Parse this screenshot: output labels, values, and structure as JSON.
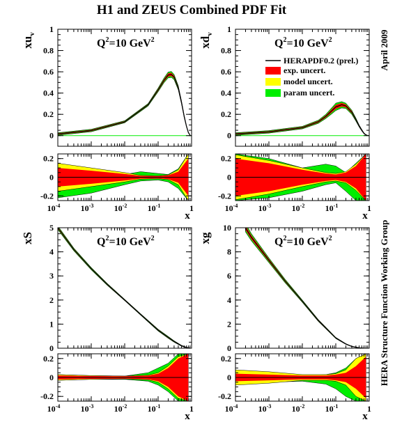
{
  "figure": {
    "title": "H1 and ZEUS Combined PDF Fit",
    "side_top": "April 2009",
    "side_bottom": "HERA Structure Function Working Group",
    "q2_label": "Q",
    "q2_value": "=10 GeV",
    "x_axis_label": "x"
  },
  "colors": {
    "central": "#000000",
    "exp": "#ff0000",
    "model": "#ffff00",
    "param": "#00ee00",
    "axis": "#000000"
  },
  "chart_data": [
    {
      "type": "line",
      "id": "xuv",
      "ylabel": "xu",
      "ylabel_sub": "v",
      "xscale": "log",
      "xlim": [
        0.0001,
        1
      ],
      "ylim": [
        -0.1,
        1
      ],
      "yticks": [
        0,
        0.2,
        0.4,
        0.6,
        0.8,
        1
      ],
      "legend": null,
      "x": [
        0.0001,
        0.001,
        0.01,
        0.05,
        0.1,
        0.15,
        0.2,
        0.25,
        0.3,
        0.4,
        0.5,
        0.6,
        0.7,
        0.8,
        0.9
      ],
      "series": [
        {
          "name": "HERAPDF0.2 (prel.)",
          "values": [
            0.015,
            0.048,
            0.13,
            0.29,
            0.43,
            0.52,
            0.57,
            0.575,
            0.55,
            0.45,
            0.31,
            0.18,
            0.09,
            0.03,
            0.004
          ]
        }
      ],
      "band_param": [
        0.012,
        0.012,
        0.01,
        0.012,
        0.018,
        0.022,
        0.028,
        0.028,
        0.025,
        0.02,
        0.015,
        0.012,
        0.008,
        0.005,
        0.002
      ],
      "ratio": {
        "ylim": [
          -0.25,
          0.25
        ],
        "yticks": [
          -0.2,
          0,
          0.2
        ],
        "x": [
          0.0001,
          0.001,
          0.01,
          0.03,
          0.1,
          0.2,
          0.4,
          0.8
        ],
        "exp": [
          0.1,
          0.07,
          0.035,
          0.015,
          0.012,
          0.02,
          0.06,
          0.2
        ],
        "model": [
          0.15,
          0.1,
          0.05,
          0.02,
          0.015,
          0.025,
          0.08,
          0.25
        ],
        "param_up": [
          0.08,
          0.06,
          0.03,
          0.06,
          0.04,
          0.03,
          0.09,
          0.25
        ],
        "param_dn": [
          0.22,
          0.17,
          0.08,
          0.04,
          0.03,
          0.05,
          0.12,
          0.25
        ]
      }
    },
    {
      "type": "line",
      "id": "xdv",
      "ylabel": "xd",
      "ylabel_sub": "v",
      "xscale": "log",
      "xlim": [
        0.0001,
        1
      ],
      "ylim": [
        -0.1,
        1
      ],
      "yticks": [
        0,
        0.2,
        0.4,
        0.6,
        0.8,
        1
      ],
      "legend": {
        "central": "HERAPDF0.2 (prel.)",
        "exp": "exp. uncert.",
        "model": "model uncert.",
        "param": "param uncert."
      },
      "x": [
        0.0001,
        0.001,
        0.01,
        0.03,
        0.05,
        0.08,
        0.1,
        0.15,
        0.2,
        0.3,
        0.4,
        0.5,
        0.6,
        0.7,
        0.8,
        0.9
      ],
      "series": [
        {
          "name": "HERAPDF0.2 (prel.)",
          "values": [
            0.015,
            0.035,
            0.075,
            0.13,
            0.18,
            0.24,
            0.27,
            0.29,
            0.28,
            0.22,
            0.15,
            0.09,
            0.05,
            0.02,
            0.007,
            0.001
          ]
        }
      ],
      "band_param": [
        0.012,
        0.012,
        0.012,
        0.015,
        0.02,
        0.03,
        0.035,
        0.03,
        0.025,
        0.02,
        0.015,
        0.01,
        0.008,
        0.005,
        0.003,
        0.001
      ],
      "ratio": {
        "ylim": [
          -0.25,
          0.25
        ],
        "yticks": [
          -0.2,
          0,
          0.2
        ],
        "x": [
          0.0001,
          0.001,
          0.01,
          0.05,
          0.1,
          0.2,
          0.4,
          0.8
        ],
        "exp": [
          0.2,
          0.15,
          0.08,
          0.04,
          0.03,
          0.05,
          0.12,
          0.25
        ],
        "model": [
          0.24,
          0.18,
          0.1,
          0.05,
          0.04,
          0.06,
          0.14,
          0.25
        ],
        "param_up": [
          0.25,
          0.2,
          0.1,
          0.14,
          0.12,
          0.05,
          0.15,
          0.25
        ],
        "param_dn": [
          0.25,
          0.22,
          0.15,
          0.08,
          0.06,
          0.15,
          0.25,
          0.25
        ]
      }
    },
    {
      "type": "line",
      "id": "xs",
      "ylabel": "xS",
      "ylabel_sub": "",
      "xscale": "log",
      "xlim": [
        0.0001,
        1
      ],
      "ylim": [
        0,
        5
      ],
      "yticks": [
        0,
        1,
        2,
        3,
        4,
        5
      ],
      "legend": null,
      "x": [
        0.0001,
        0.0003,
        0.001,
        0.003,
        0.01,
        0.03,
        0.1,
        0.2,
        0.3,
        0.5,
        0.7,
        0.9
      ],
      "series": [
        {
          "name": "HERAPDF0.2 (prel.)",
          "values": [
            5.0,
            4.1,
            3.3,
            2.65,
            2.0,
            1.4,
            0.75,
            0.45,
            0.28,
            0.1,
            0.03,
            0.005
          ]
        }
      ],
      "band_param": [
        0.08,
        0.06,
        0.05,
        0.04,
        0.03,
        0.03,
        0.04,
        0.04,
        0.03,
        0.02,
        0.01,
        0.005
      ],
      "ratio": {
        "ylim": [
          -0.25,
          0.25
        ],
        "yticks": [
          -0.2,
          0,
          0.2
        ],
        "x": [
          0.0001,
          0.001,
          0.01,
          0.05,
          0.1,
          0.2,
          0.4,
          0.8
        ],
        "exp": [
          0.02,
          0.015,
          0.012,
          0.02,
          0.04,
          0.1,
          0.2,
          0.25
        ],
        "model": [
          0.03,
          0.02,
          0.015,
          0.025,
          0.05,
          0.12,
          0.22,
          0.25
        ],
        "param_up": [
          0.03,
          0.02,
          0.015,
          0.05,
          0.1,
          0.15,
          0.25,
          0.25
        ],
        "param_dn": [
          0.03,
          0.02,
          0.02,
          0.04,
          0.08,
          0.15,
          0.25,
          0.25
        ]
      }
    },
    {
      "type": "line",
      "id": "xg",
      "ylabel": "xg",
      "ylabel_sub": "",
      "xscale": "log",
      "xlim": [
        0.0001,
        1
      ],
      "ylim": [
        0,
        10
      ],
      "yticks": [
        0,
        2,
        4,
        6,
        8,
        10
      ],
      "legend": null,
      "x": [
        0.0002,
        0.0003,
        0.001,
        0.003,
        0.01,
        0.03,
        0.1,
        0.2,
        0.3,
        0.5,
        0.7,
        0.9
      ],
      "series": [
        {
          "name": "HERAPDF0.2 (prel.)",
          "values": [
            10.0,
            9.2,
            7.3,
            5.6,
            3.9,
            2.3,
            0.85,
            0.35,
            0.15,
            0.03,
            0.005,
            0.001
          ]
        }
      ],
      "band_param": [
        0.35,
        0.3,
        0.2,
        0.15,
        0.1,
        0.08,
        0.05,
        0.03,
        0.02,
        0.01,
        0.005,
        0.001
      ],
      "ratio": {
        "ylim": [
          -0.25,
          0.25
        ],
        "yticks": [
          -0.2,
          0,
          0.2
        ],
        "x": [
          0.0001,
          0.001,
          0.01,
          0.05,
          0.1,
          0.2,
          0.4,
          0.8
        ],
        "exp": [
          0.04,
          0.03,
          0.02,
          0.02,
          0.03,
          0.05,
          0.12,
          0.22
        ],
        "model": [
          0.08,
          0.06,
          0.03,
          0.03,
          0.04,
          0.08,
          0.2,
          0.25
        ],
        "param_up": [
          0.04,
          0.03,
          0.02,
          0.03,
          0.05,
          0.1,
          0.2,
          0.25
        ],
        "param_dn": [
          0.05,
          0.05,
          0.04,
          0.07,
          0.12,
          0.2,
          0.25,
          0.25
        ]
      }
    }
  ]
}
